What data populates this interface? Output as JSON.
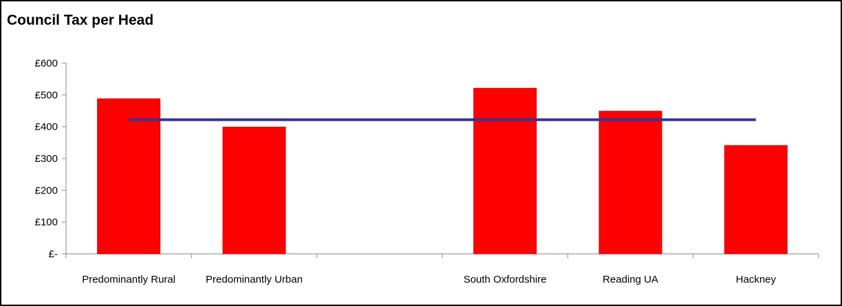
{
  "chart_data": {
    "type": "bar",
    "title": "Council Tax per Head",
    "categories": [
      "Predominantly Rural",
      "Predominantly Urban",
      "",
      "South Oxfordshire",
      "Reading UA",
      "Hackney"
    ],
    "series": [
      {
        "values": [
          488,
          399,
          null,
          521,
          449,
          341
        ],
        "color": "#ff0000"
      },
      {
        "type": "line",
        "values": [
          422,
          422,
          422,
          422,
          422,
          422
        ],
        "color": "#333399"
      }
    ],
    "y_tick_labels": [
      "£-",
      "£100",
      "£200",
      "£300",
      "£400",
      "£500",
      "£600"
    ],
    "ylim": [
      0,
      600
    ],
    "grid": false,
    "legend": "none"
  }
}
